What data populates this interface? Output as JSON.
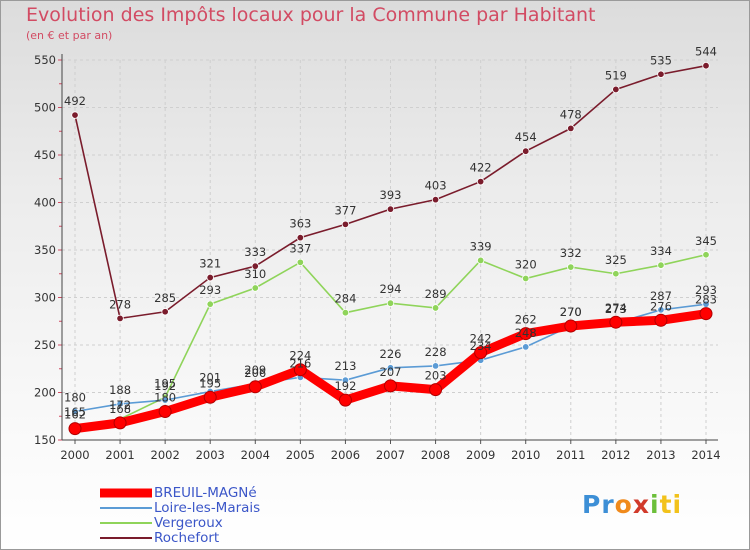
{
  "chart_data": {
    "type": "line",
    "title": "Evolution des Impôts locaux pour la Commune par Habitant",
    "subtitle": "(en € et par an)",
    "xlabel": "",
    "ylabel": "",
    "ylim": [
      150,
      550
    ],
    "yticks": [
      "150",
      "200",
      "250",
      "300",
      "350",
      "400",
      "450",
      "500",
      "550"
    ],
    "categories": [
      "2000",
      "2001",
      "2002",
      "2003",
      "2004",
      "2005",
      "2006",
      "2007",
      "2008",
      "2009",
      "2010",
      "2011",
      "2012",
      "2013",
      "2014"
    ],
    "grid": true,
    "legend_position": "bottom-left",
    "series": [
      {
        "name": "Rochefort",
        "color": "#7a1c2c",
        "values": [
          492,
          278,
          285,
          321,
          333,
          363,
          377,
          393,
          403,
          422,
          454,
          478,
          519,
          535,
          544
        ],
        "labels": [
          "492",
          "278",
          "285",
          "321",
          "333",
          "363",
          "377",
          "393",
          "403",
          "422",
          "454",
          "478",
          "519",
          "535",
          "544"
        ]
      },
      {
        "name": "Vergeroux",
        "color": "#8fd45a",
        "values": [
          165,
          172,
          195,
          293,
          310,
          337,
          284,
          294,
          289,
          339,
          320,
          332,
          325,
          334,
          345
        ],
        "labels": [
          "165",
          "172",
          "195",
          "293",
          "310",
          "337",
          "284",
          "294",
          "289",
          "339",
          "320",
          "332",
          "325",
          "334",
          "345"
        ]
      },
      {
        "name": "Loire-les-Marais",
        "color": "#5b9bd5",
        "values": [
          180,
          188,
          192,
          201,
          209,
          216,
          213,
          226,
          228,
          234,
          248,
          270,
          273,
          287,
          293
        ],
        "labels": [
          "180",
          "188",
          "192",
          "201",
          "209",
          "216",
          "213",
          "226",
          "228",
          "234",
          "248",
          "270",
          "273",
          "287",
          "293"
        ]
      },
      {
        "name": "BREUIL-MAGNé",
        "color": "#ff0000",
        "values": [
          162,
          168,
          180,
          195,
          206,
          224,
          192,
          207,
          203,
          242,
          262,
          270,
          274,
          276,
          283
        ],
        "labels": [
          "162",
          "168",
          "180",
          "195",
          "206",
          "224",
          "192",
          "207",
          "203",
          "242",
          "262",
          "270",
          "274",
          "276",
          "283"
        ]
      }
    ],
    "legend": [
      "BREUIL-MAGNé",
      "Loire-les-Marais",
      "Vergeroux",
      "Rochefort"
    ]
  },
  "logo": {
    "p": "Pr",
    "o": "o",
    "x": "x",
    "i": "i",
    "t": "ti"
  }
}
